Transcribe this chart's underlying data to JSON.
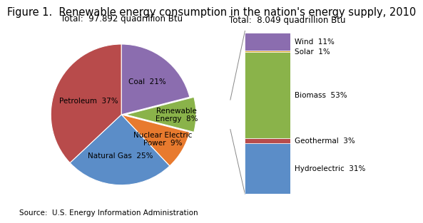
{
  "title": "Figure 1.  Renewable energy consumption in the nation's energy supply, 2010",
  "pie_total_label": "Total:  97.892 quadrillion Btu",
  "bar_total_label": "Total:  8.049 quadrillion Btu",
  "source_label": "Source:  U.S. Energy Information Administration",
  "pie_labels": [
    "Coal  21%",
    "Renewable\nEnergy  8%",
    "Nuclear Electric\nPower  9%",
    "Natural Gas  25%",
    "Petroleum  37%"
  ],
  "pie_sizes": [
    21,
    8,
    9,
    25,
    37
  ],
  "pie_colors": [
    "#8B6DAF",
    "#8AB34A",
    "#E87A2E",
    "#5B8DC8",
    "#B84B4B"
  ],
  "bar_values": [
    31,
    3,
    53,
    1,
    11
  ],
  "bar_colors": [
    "#5B8DC8",
    "#B84B4B",
    "#8AB34A",
    "#DAA520",
    "#8B6DAF"
  ],
  "bar_labels": [
    "Hydroelectric  31%",
    "Geothermal  3%",
    "Biomass  53%",
    "Solar  1%",
    "Wind  11%"
  ],
  "title_fontsize": 10.5,
  "label_fontsize": 7.5,
  "total_fontsize": 8.5,
  "source_fontsize": 7.5
}
